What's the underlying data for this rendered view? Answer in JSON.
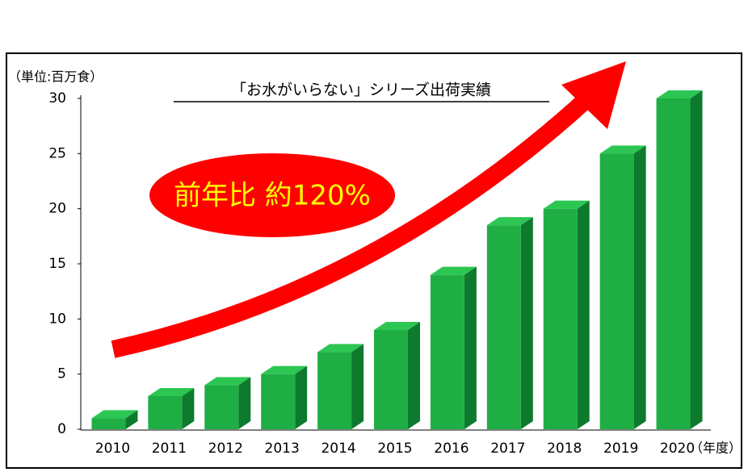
{
  "chart_data": {
    "type": "bar",
    "title": "「お水がいらない」シリーズ出荷実績",
    "y_label": "（単位:百万食）",
    "x_label": "（年度）",
    "annotation": "前年比 約120%",
    "categories": [
      "2010",
      "2011",
      "2012",
      "2013",
      "2014",
      "2015",
      "2016",
      "2017",
      "2018",
      "2019",
      "2020"
    ],
    "values": [
      1,
      3,
      4,
      5,
      7,
      9,
      14,
      18.5,
      20,
      25,
      30
    ],
    "color": "#1fae44",
    "ylim": [
      0,
      30
    ],
    "yticks": [
      0,
      5,
      10,
      15,
      20,
      25,
      30
    ],
    "grid": false
  }
}
